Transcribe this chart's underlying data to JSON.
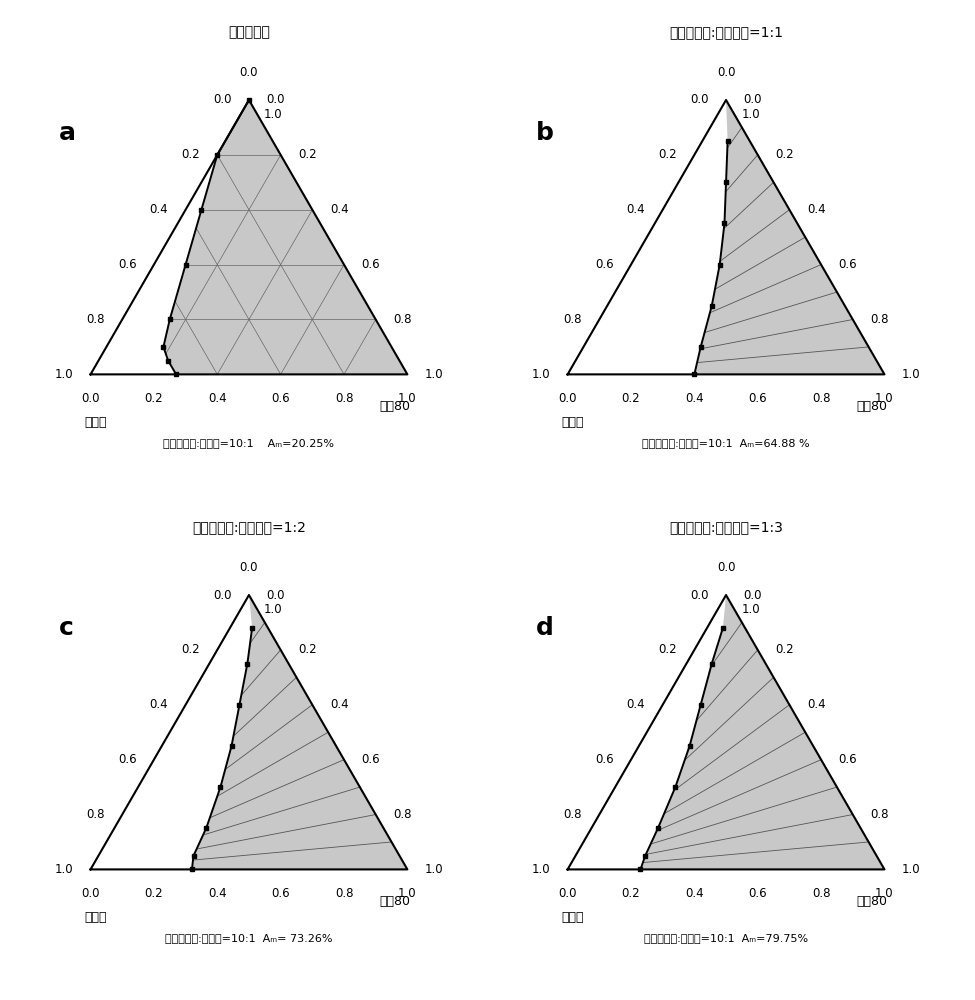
{
  "panels": [
    {
      "label": "a",
      "title": "薛衣草精油",
      "subtitle_center": "薛衣草精油:香芹醇=10:1    Aₘ=20.25%",
      "curve_ternary": [
        [
          1.0,
          0.0,
          0.0
        ],
        [
          0.8,
          0.0,
          0.2
        ],
        [
          0.6,
          0.05,
          0.35
        ],
        [
          0.4,
          0.1,
          0.5
        ],
        [
          0.2,
          0.15,
          0.65
        ],
        [
          0.1,
          0.18,
          0.72
        ],
        [
          0.05,
          0.22,
          0.73
        ],
        [
          0.0,
          0.27,
          0.73
        ]
      ],
      "type": "a"
    },
    {
      "label": "b",
      "title": "薛衣草精油:二丙二醇=1:1",
      "subtitle_center": "薛衣草精油:香芹醇=10:1  Aₘ=64.88 %",
      "curve_ternary": [
        [
          0.85,
          0.08,
          0.07
        ],
        [
          0.7,
          0.15,
          0.15
        ],
        [
          0.55,
          0.22,
          0.23
        ],
        [
          0.4,
          0.28,
          0.32
        ],
        [
          0.25,
          0.33,
          0.42
        ],
        [
          0.1,
          0.37,
          0.53
        ],
        [
          0.0,
          0.4,
          0.6
        ]
      ],
      "type": "b"
    },
    {
      "label": "c",
      "title": "薛衣草精油:二丙二醇=1:2",
      "subtitle_center": "薛衣草精油:香芹醇=10:1  Aₘ= 73.26%",
      "curve_ternary": [
        [
          0.88,
          0.07,
          0.05
        ],
        [
          0.75,
          0.12,
          0.13
        ],
        [
          0.6,
          0.17,
          0.23
        ],
        [
          0.45,
          0.22,
          0.33
        ],
        [
          0.3,
          0.26,
          0.44
        ],
        [
          0.15,
          0.29,
          0.56
        ],
        [
          0.05,
          0.3,
          0.65
        ],
        [
          0.0,
          0.32,
          0.68
        ]
      ],
      "type": "c"
    },
    {
      "label": "d",
      "title": "薛衣草精油:二丙二醇=1:3",
      "subtitle_center": "薛衣草精油:香芹醇=10:1  Aₘ=79.75%",
      "curve_ternary": [
        [
          0.88,
          0.05,
          0.07
        ],
        [
          0.75,
          0.08,
          0.17
        ],
        [
          0.6,
          0.12,
          0.28
        ],
        [
          0.45,
          0.16,
          0.39
        ],
        [
          0.3,
          0.19,
          0.51
        ],
        [
          0.15,
          0.21,
          0.64
        ],
        [
          0.05,
          0.22,
          0.73
        ],
        [
          0.0,
          0.23,
          0.77
        ]
      ],
      "type": "d"
    }
  ],
  "gray_fill": "#c8c8c8",
  "hatch_pattern": "////",
  "left_corner_label": "蔻馏水",
  "right_corner_label": "吐渨80"
}
